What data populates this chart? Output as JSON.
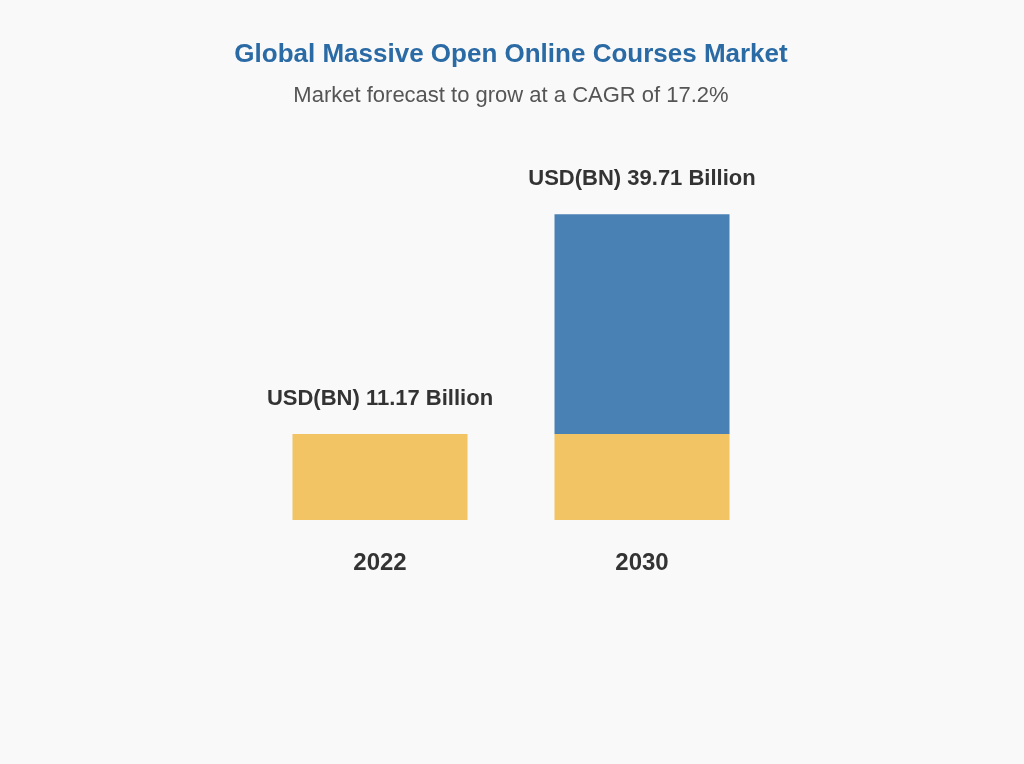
{
  "chart_data": {
    "type": "bar",
    "title": "Global Massive Open Online Courses Market",
    "subtitle": "Market forecast to grow at a CAGR of 17.2%",
    "categories": [
      "2022",
      "2030"
    ],
    "stacked": true,
    "series": [
      {
        "color": "#f2c463",
        "values": [
          11.17,
          11.17
        ],
        "value_labels": [
          "USD(BN) 11.17 Billion",
          null
        ]
      },
      {
        "color": "#4a81b4",
        "values": [
          null,
          28.54
        ]
      }
    ],
    "totals": [
      null,
      "USD(BN) 39.71 Billion"
    ]
  }
}
